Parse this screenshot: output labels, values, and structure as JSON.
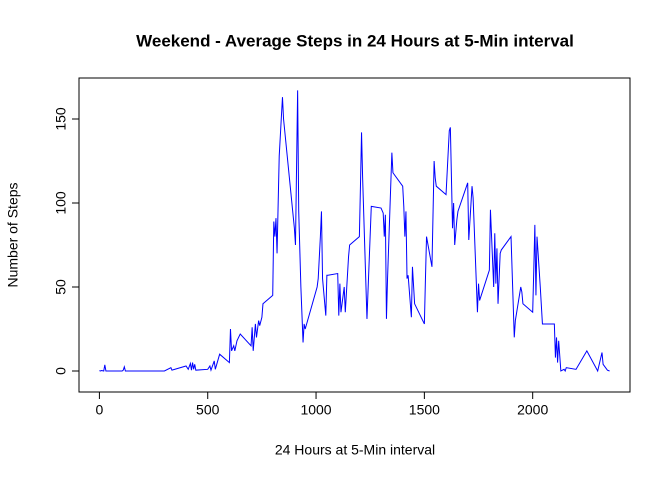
{
  "chart_data": {
    "type": "line",
    "title": "Weekend - Average Steps in 24 Hours at 5-Min interval",
    "x_label": "24 Hours at 5-Min interval",
    "y_label": "Number of Steps",
    "color": "#0000ff",
    "x": [
      0,
      5,
      10,
      20,
      25,
      30,
      55,
      105,
      110,
      115,
      120,
      200,
      300,
      330,
      335,
      400,
      410,
      420,
      425,
      430,
      435,
      440,
      445,
      500,
      510,
      515,
      530,
      535,
      555,
      600,
      605,
      610,
      620,
      625,
      635,
      650,
      700,
      705,
      710,
      720,
      725,
      735,
      740,
      750,
      755,
      800,
      805,
      810,
      815,
      820,
      830,
      845,
      850,
      900,
      905,
      915,
      920,
      930,
      940,
      945,
      950,
      1005,
      1010,
      1020,
      1025,
      1030,
      1045,
      1050,
      1055,
      1100,
      1105,
      1110,
      1115,
      1130,
      1135,
      1150,
      1155,
      1200,
      1205,
      1210,
      1215,
      1235,
      1240,
      1255,
      1300,
      1310,
      1315,
      1320,
      1325,
      1330,
      1350,
      1355,
      1400,
      1405,
      1410,
      1415,
      1420,
      1425,
      1440,
      1445,
      1455,
      1500,
      1505,
      1510,
      1535,
      1545,
      1550,
      1555,
      1600,
      1615,
      1620,
      1630,
      1635,
      1640,
      1650,
      1655,
      1700,
      1705,
      1720,
      1725,
      1745,
      1750,
      1755,
      1800,
      1805,
      1820,
      1825,
      1830,
      1835,
      1840,
      1850,
      1855,
      1900,
      1915,
      1920,
      1945,
      1950,
      1955,
      2000,
      2005,
      2010,
      2015,
      2020,
      2035,
      2045,
      2050,
      2100,
      2105,
      2110,
      2115,
      2120,
      2130,
      2145,
      2150,
      2155,
      2200,
      2250,
      2300,
      2320,
      2325,
      2345,
      2355
    ],
    "values": [
      0.2,
      0,
      0.3,
      0,
      3.7,
      0,
      0,
      0,
      0.5,
      2.5,
      0,
      0,
      0,
      2,
      0.5,
      3,
      1,
      4.5,
      0.5,
      5,
      1,
      4,
      0.5,
      1,
      3,
      0.5,
      6,
      1,
      10,
      5,
      25,
      12,
      15,
      12,
      18,
      22,
      15,
      26,
      12,
      28,
      20,
      30,
      27,
      32,
      40,
      45,
      89,
      80,
      91,
      70,
      128,
      163,
      150,
      85,
      75,
      167,
      95,
      50,
      17,
      28,
      25,
      50,
      55,
      80,
      95,
      55,
      33,
      57,
      57,
      58,
      33,
      52,
      35,
      50,
      35,
      68,
      75,
      80,
      110,
      142,
      115,
      31,
      48,
      98,
      97,
      94,
      80,
      93,
      31,
      55,
      130,
      118,
      110,
      98,
      80,
      95,
      55,
      57,
      32,
      62,
      40,
      28,
      55,
      80,
      62,
      125,
      115,
      110,
      105,
      143,
      145,
      85,
      100,
      75,
      90,
      95,
      112,
      78,
      110,
      103,
      35,
      52,
      42,
      60,
      96,
      50,
      82,
      52,
      73,
      40,
      70,
      72,
      80,
      20,
      30,
      50,
      47,
      40,
      35,
      60,
      87,
      45,
      80,
      50,
      28,
      28,
      28,
      8,
      20,
      5,
      18,
      0,
      1,
      0,
      2,
      1,
      12,
      0,
      11,
      4,
      0.5,
      0
    ],
    "xlim": [
      -94.2,
      2449.2
    ],
    "ylim": [
      -12.5,
      174.4
    ],
    "xticks": [
      0,
      500,
      1000,
      1500,
      2000
    ],
    "yticks": [
      0,
      50,
      100,
      150
    ]
  }
}
